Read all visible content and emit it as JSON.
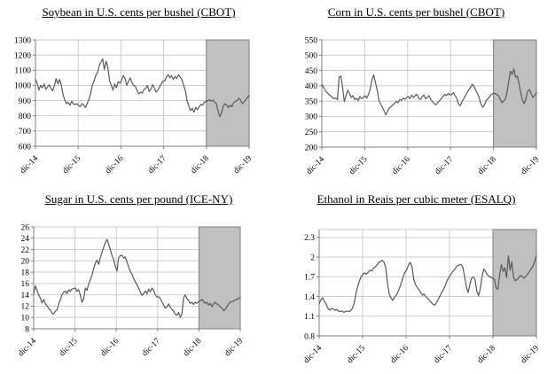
{
  "page": {
    "background": "#ffffff"
  },
  "colors": {
    "line": "#595959",
    "grid": "#c8c8c8",
    "axis": "#7f7f7f",
    "shade_fill": "#c0c0c0",
    "shade_border": "#7f7f7f",
    "text": "#000000"
  },
  "chart_data": [
    {
      "type": "line",
      "title": "Soybean in U.S. cents per bushel (CBOT)",
      "xlabel": "",
      "ylabel": "",
      "x_labels": [
        "dic-14",
        "dic-15",
        "dic-16",
        "dic-17",
        "dic-18",
        "dic-19"
      ],
      "yticks": [
        "1300",
        "1200",
        "1100",
        "1000",
        "900",
        "800",
        "700",
        "600"
      ],
      "ylim": [
        600,
        1300
      ],
      "grid": "on",
      "legend": "none",
      "shade_region": {
        "from_x_fraction": 0.8,
        "to_x_fraction": 1.0,
        "meaning": "forecast band dic-18 to dic-19"
      },
      "values": [
        1040,
        1015,
        970,
        1000,
        985,
        1010,
        975,
        990,
        1005,
        980,
        965,
        1000,
        1045,
        1010,
        1040,
        1000,
        940,
        905,
        880,
        890,
        870,
        895,
        880,
        875,
        880,
        870,
        860,
        880,
        870,
        855,
        880,
        910,
        945,
        1000,
        1030,
        1065,
        1085,
        1130,
        1155,
        1175,
        1105,
        1160,
        1120,
        1030,
        1000,
        970,
        1010,
        985,
        1025,
        1015,
        1035,
        1065,
        1045,
        1000,
        1030,
        1050,
        1020,
        1000,
        995,
        965,
        945,
        955,
        950,
        975,
        980,
        1000,
        960,
        975,
        1005,
        985,
        955,
        970,
        990,
        1010,
        1030,
        1030,
        1055,
        1070,
        1050,
        1065,
        1040,
        1060,
        1045,
        1070,
        1055,
        1040,
        1000,
        965,
        900,
        865,
        835,
        850,
        825,
        855,
        840,
        860,
        875,
        870,
        890,
        895,
        900,
        905,
        895,
        905,
        890,
        880,
        830,
        795,
        820,
        865,
        880,
        870,
        855,
        870,
        860,
        885,
        895,
        900,
        915,
        905,
        880,
        890,
        905,
        920,
        935
      ]
    },
    {
      "type": "line",
      "title": "Corn in U.S. cents per bushel (CBOT)",
      "xlabel": "",
      "ylabel": "",
      "x_labels": [
        "dic-14",
        "dic-15",
        "dic-16",
        "dic-17",
        "dic-18",
        "dic-19"
      ],
      "yticks": [
        "550",
        "500",
        "450",
        "400",
        "350",
        "300",
        "250",
        "200"
      ],
      "ylim": [
        200,
        550
      ],
      "grid": "on",
      "legend": "none",
      "shade_region": {
        "from_x_fraction": 0.8,
        "to_x_fraction": 1.0,
        "meaning": "forecast band dic-18 to dic-19"
      },
      "values": [
        405,
        395,
        385,
        378,
        372,
        368,
        362,
        358,
        360,
        355,
        428,
        432,
        395,
        348,
        368,
        385,
        375,
        362,
        368,
        355,
        360,
        352,
        365,
        358,
        362,
        368,
        360,
        372,
        390,
        420,
        436,
        410,
        385,
        352,
        340,
        330,
        318,
        305,
        318,
        328,
        332,
        338,
        342,
        350,
        345,
        355,
        352,
        360,
        356,
        362,
        365,
        358,
        370,
        362,
        368,
        372,
        360,
        355,
        365,
        370,
        358,
        362,
        368,
        355,
        348,
        342,
        338,
        345,
        352,
        358,
        365,
        372,
        368,
        375,
        370,
        372,
        378,
        368,
        360,
        340,
        335,
        348,
        358,
        368,
        378,
        388,
        395,
        405,
        398,
        385,
        375,
        360,
        340,
        330,
        338,
        352,
        358,
        365,
        372,
        375,
        375,
        372,
        368,
        358,
        345,
        350,
        355,
        378,
        415,
        448,
        437,
        455,
        428,
        432,
        405,
        378,
        352,
        342,
        360,
        382,
        388,
        375,
        362,
        368,
        378
      ]
    },
    {
      "type": "line",
      "title": "Sugar in U.S. cents per pound (ICE-NY)",
      "xlabel": "",
      "ylabel": "",
      "x_labels": [
        "dic-14",
        "dic-15",
        "dic-16",
        "dic-17",
        "dic-18",
        "dic-19"
      ],
      "yticks": [
        "26",
        "24",
        "22",
        "20",
        "18",
        "16",
        "14",
        "12",
        "10",
        "8"
      ],
      "ylim": [
        8,
        26
      ],
      "grid": "on",
      "legend": "none",
      "shade_region": {
        "from_x_fraction": 0.8,
        "to_x_fraction": 1.0,
        "meaning": "forecast band dic-18 to dic-19"
      },
      "values": [
        14.2,
        15.6,
        14.8,
        14.0,
        13.4,
        12.6,
        13.2,
        12.4,
        12.1,
        11.6,
        11.3,
        10.8,
        10.6,
        11.1,
        11.3,
        12.4,
        13.2,
        14.0,
        14.5,
        14.7,
        14.2,
        14.9,
        14.6,
        15.0,
        15.1,
        15.2,
        14.6,
        14.9,
        14.0,
        12.7,
        13.3,
        15.2,
        14.8,
        15.9,
        16.7,
        17.5,
        18.6,
        19.6,
        20.1,
        19.4,
        20.6,
        21.5,
        22.4,
        23.2,
        23.8,
        22.9,
        22.0,
        21.0,
        20.2,
        19.0,
        18.2,
        20.5,
        20.9,
        21.0,
        20.5,
        20.7,
        19.9,
        18.9,
        18.1,
        17.6,
        16.9,
        16.3,
        15.8,
        15.2,
        14.5,
        13.9,
        14.2,
        14.7,
        14.2,
        15.0,
        14.5,
        15.2,
        14.8,
        14.0,
        13.6,
        13.7,
        13.3,
        12.7,
        12.2,
        11.7,
        11.9,
        12.4,
        11.8,
        11.4,
        11.1,
        10.6,
        10.4,
        10.9,
        10.0,
        10.6,
        13.5,
        14.0,
        13.3,
        13.0,
        12.5,
        12.7,
        12.3,
        12.7,
        12.5,
        12.8,
        12.9,
        13.2,
        12.8,
        12.5,
        12.7,
        12.2,
        12.5,
        11.9,
        12.4,
        12.7,
        12.4,
        12.2,
        11.9,
        11.7,
        11.2,
        11.4,
        11.9,
        12.4,
        12.7,
        12.8,
        12.9,
        13.1,
        13.2,
        13.4,
        13.5
      ]
    },
    {
      "type": "line",
      "title": "Ethanol in Reais per cubic meter (ESALQ)",
      "xlabel": "",
      "ylabel": "",
      "x_labels": [
        "dic-14",
        "dic-15",
        "dic-16",
        "dic-17",
        "dic-18",
        "dic-19"
      ],
      "yticks": [
        "2.3",
        "2",
        "1.7",
        "1.4",
        "1.1",
        "0.8"
      ],
      "ylim": [
        0.8,
        2.42
      ],
      "grid": "on",
      "legend": "none",
      "shade_region": {
        "from_x_fraction": 0.8,
        "to_x_fraction": 1.0,
        "meaning": "forecast band dic-18 to dic-19"
      },
      "values": [
        1.29,
        1.35,
        1.38,
        1.33,
        1.28,
        1.22,
        1.19,
        1.22,
        1.21,
        1.19,
        1.2,
        1.18,
        1.17,
        1.18,
        1.16,
        1.17,
        1.18,
        1.17,
        1.19,
        1.22,
        1.3,
        1.45,
        1.55,
        1.64,
        1.7,
        1.74,
        1.76,
        1.74,
        1.77,
        1.8,
        1.79,
        1.83,
        1.85,
        1.88,
        1.92,
        1.93,
        1.95,
        1.92,
        1.84,
        1.6,
        1.44,
        1.38,
        1.34,
        1.39,
        1.42,
        1.47,
        1.54,
        1.62,
        1.7,
        1.77,
        1.81,
        1.88,
        1.92,
        1.85,
        1.66,
        1.58,
        1.54,
        1.5,
        1.46,
        1.42,
        1.44,
        1.39,
        1.37,
        1.34,
        1.31,
        1.28,
        1.27,
        1.31,
        1.36,
        1.41,
        1.46,
        1.51,
        1.57,
        1.64,
        1.69,
        1.73,
        1.77,
        1.8,
        1.84,
        1.87,
        1.88,
        1.89,
        1.85,
        1.71,
        1.55,
        1.46,
        1.58,
        1.68,
        1.7,
        1.66,
        1.48,
        1.41,
        1.52,
        1.71,
        1.82,
        1.78,
        1.73,
        1.71,
        1.69,
        1.68,
        1.66,
        1.53,
        1.51,
        1.72,
        1.89,
        1.78,
        1.84,
        1.69,
        2.02,
        1.8,
        1.93,
        1.69,
        1.64,
        1.66,
        1.69,
        1.72,
        1.7,
        1.68,
        1.71,
        1.74,
        1.78,
        1.82,
        1.86,
        1.93,
        2.02
      ]
    }
  ]
}
